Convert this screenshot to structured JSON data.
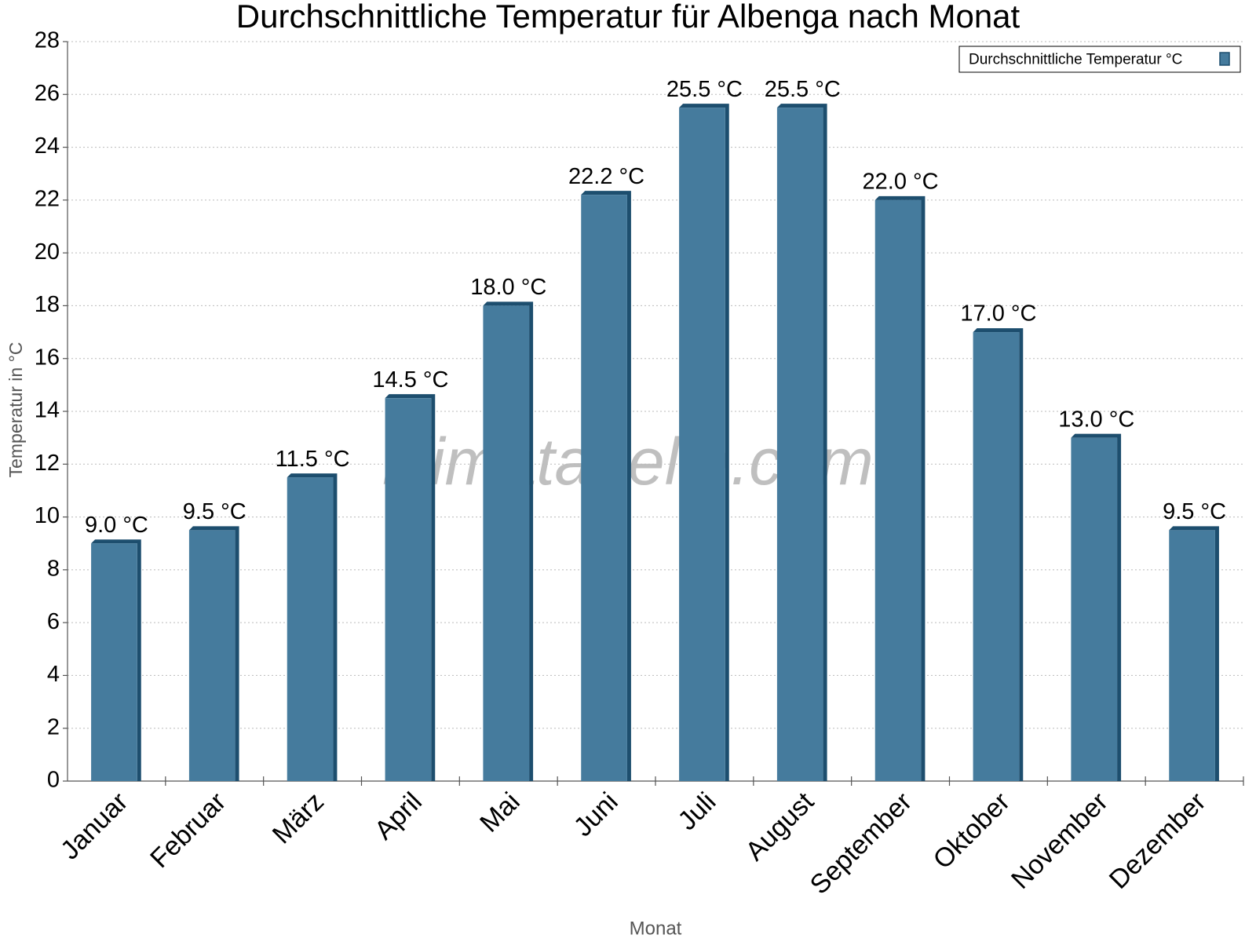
{
  "chart_data": {
    "type": "bar",
    "title": "Durchschnittliche Temperatur für Albenga nach Monat",
    "x_label": "Monat",
    "y_label": "Temperatur in °C",
    "watermark": "klimatabelle.com",
    "categories": [
      "Januar",
      "Februar",
      "März",
      "April",
      "Mai",
      "Juni",
      "Juli",
      "August",
      "September",
      "Oktober",
      "November",
      "Dezember"
    ],
    "series": [
      {
        "name": "Durchschnittliche Temperatur °C",
        "color": "#457b9d",
        "values": [
          9.0,
          9.5,
          11.5,
          14.5,
          18.0,
          22.2,
          25.5,
          25.5,
          22.0,
          17.0,
          13.0,
          9.5
        ],
        "value_labels": [
          "9.0 °C",
          "9.5 °C",
          "11.5 °C",
          "14.5 °C",
          "18.0 °C",
          "22.2 °C",
          "25.5 °C",
          "25.5 °C",
          "22.0 °C",
          "17.0 °C",
          "13.0 °C",
          "9.5 °C"
        ]
      }
    ],
    "ylim": [
      0,
      28
    ],
    "yticks": [
      0,
      2,
      4,
      6,
      8,
      10,
      12,
      14,
      16,
      18,
      20,
      22,
      24,
      26,
      28
    ],
    "grid": true,
    "legend": "top-right"
  }
}
